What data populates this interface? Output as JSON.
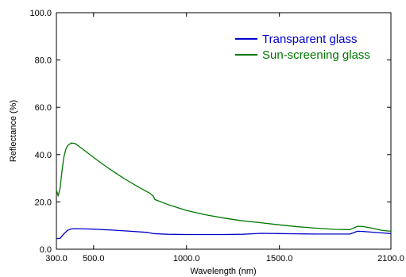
{
  "chart_data": {
    "type": "line",
    "xlabel": "Wavelength (nm)",
    "ylabel": "Reflectance (%)",
    "xlim": [
      300,
      2100
    ],
    "ylim": [
      0,
      100
    ],
    "x_ticks": [
      300,
      500,
      1000,
      1500,
      2100
    ],
    "x_tick_labels": [
      "300.0",
      "500.0",
      "1000.0",
      "1500.0",
      "2100.0"
    ],
    "y_ticks": [
      0,
      20,
      40,
      60,
      80,
      100
    ],
    "y_tick_labels": [
      "0.0",
      "20.0",
      "40.0",
      "60.0",
      "80.0",
      "100.0"
    ],
    "grid": false,
    "legend_position": "top-right",
    "series": [
      {
        "name": "Transparent glass",
        "color": "#0000cc",
        "x": [
          300,
          320,
          340,
          360,
          380,
          400,
          450,
          500,
          600,
          700,
          790,
          820,
          900,
          1000,
          1100,
          1200,
          1300,
          1400,
          1500,
          1600,
          1700,
          1800,
          1880,
          1900,
          1920,
          1950,
          2000,
          2050,
          2100
        ],
        "y": [
          4.5,
          4.6,
          6.5,
          8.0,
          8.6,
          8.7,
          8.6,
          8.5,
          8.1,
          7.6,
          7.1,
          6.6,
          6.3,
          6.2,
          6.2,
          6.2,
          6.3,
          6.7,
          6.6,
          6.5,
          6.4,
          6.4,
          6.4,
          7.0,
          7.6,
          7.5,
          7.2,
          6.9,
          6.6
        ]
      },
      {
        "name": "Sun-screening glass",
        "color": "#007700",
        "x": [
          300,
          310,
          320,
          330,
          340,
          350,
          360,
          380,
          400,
          420,
          450,
          500,
          550,
          600,
          650,
          700,
          750,
          800,
          820,
          830,
          900,
          1000,
          1100,
          1200,
          1300,
          1400,
          1500,
          1600,
          1700,
          1800,
          1880,
          1900,
          1920,
          1950,
          2000,
          2050,
          2100
        ],
        "y": [
          25.0,
          22.5,
          26.0,
          33.0,
          39.0,
          42.0,
          43.8,
          44.9,
          44.7,
          43.6,
          41.8,
          38.8,
          35.9,
          33.2,
          30.6,
          28.2,
          25.9,
          23.8,
          22.6,
          21.0,
          18.9,
          16.4,
          14.6,
          13.2,
          12.0,
          11.2,
          10.3,
          9.5,
          8.9,
          8.4,
          8.3,
          9.0,
          9.7,
          9.6,
          8.9,
          8.0,
          7.6
        ]
      }
    ]
  }
}
